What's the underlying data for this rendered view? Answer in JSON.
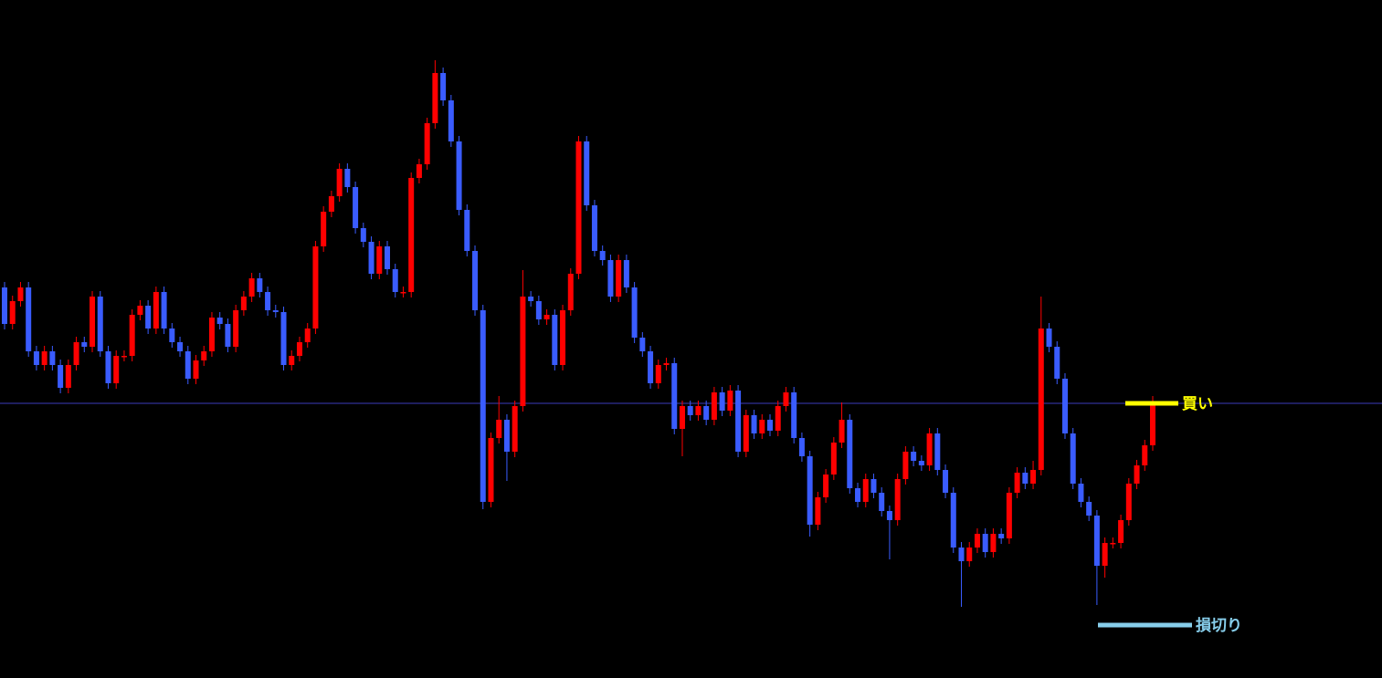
{
  "chart_data": {
    "type": "candlestick",
    "ylim": [
      0,
      743
    ],
    "up_color": "#ff0000",
    "down_color": "#3a5cff",
    "open": [
      428,
      388,
      413,
      428,
      358,
      343,
      358,
      343,
      318,
      343,
      368,
      363,
      418,
      358,
      323,
      353,
      353,
      398,
      408,
      383,
      423,
      383,
      368,
      358,
      328,
      348,
      358,
      395,
      388,
      363,
      403,
      418,
      438,
      423,
      403,
      401,
      343,
      353,
      368,
      383,
      473,
      511,
      528,
      558,
      538,
      493,
      478,
      443,
      473,
      448,
      423,
      423,
      548,
      563,
      608,
      663,
      633,
      588,
      513,
      468,
      403,
      193,
      263,
      283,
      248,
      298,
      418,
      413,
      393,
      398,
      343,
      403,
      443,
      588,
      518,
      468,
      458,
      418,
      458,
      428,
      373,
      358,
      323,
      343,
      345,
      273,
      298,
      288,
      298,
      283,
      313,
      293,
      315,
      248,
      288,
      268,
      283,
      271,
      298,
      313,
      263,
      243,
      168,
      198,
      223,
      258,
      283,
      208,
      193,
      218,
      203,
      183,
      173,
      218,
      248,
      238,
      233,
      268,
      228,
      203,
      143,
      128,
      143,
      158,
      138,
      158,
      153,
      203,
      225,
      213,
      228,
      383,
      363,
      328,
      268,
      213,
      193,
      178,
      123,
      148,
      148,
      173,
      213,
      233,
      255
    ],
    "high": [
      434,
      419,
      434,
      434,
      364,
      364,
      364,
      349,
      349,
      374,
      374,
      424,
      424,
      364,
      359,
      359,
      404,
      414,
      414,
      429,
      429,
      389,
      374,
      364,
      354,
      364,
      401,
      401,
      394,
      409,
      424,
      444,
      444,
      429,
      409,
      407,
      359,
      374,
      389,
      479,
      517,
      534,
      564,
      564,
      544,
      499,
      484,
      479,
      479,
      454,
      429,
      554,
      569,
      614,
      677,
      669,
      639,
      594,
      519,
      474,
      409,
      269,
      309,
      289,
      304,
      447,
      424,
      419,
      404,
      404,
      409,
      449,
      594,
      594,
      524,
      474,
      464,
      464,
      464,
      434,
      379,
      364,
      349,
      351,
      351,
      304,
      304,
      304,
      304,
      319,
      319,
      321,
      321,
      294,
      294,
      289,
      289,
      304,
      319,
      319,
      269,
      249,
      204,
      229,
      264,
      302,
      289,
      214,
      224,
      224,
      209,
      189,
      224,
      254,
      254,
      244,
      274,
      274,
      234,
      209,
      149,
      149,
      164,
      164,
      164,
      164,
      209,
      231,
      231,
      238,
      418,
      389,
      369,
      334,
      274,
      219,
      199,
      184,
      154,
      154,
      179,
      219,
      239,
      261,
      309
    ],
    "low": [
      382,
      382,
      407,
      352,
      337,
      337,
      337,
      312,
      312,
      337,
      357,
      357,
      352,
      317,
      317,
      347,
      347,
      392,
      377,
      377,
      377,
      362,
      352,
      322,
      322,
      342,
      352,
      382,
      357,
      357,
      397,
      412,
      417,
      397,
      395,
      337,
      337,
      347,
      362,
      377,
      467,
      505,
      522,
      532,
      487,
      472,
      437,
      437,
      442,
      417,
      417,
      417,
      542,
      557,
      602,
      627,
      582,
      507,
      462,
      397,
      185,
      187,
      257,
      216,
      242,
      292,
      407,
      387,
      387,
      337,
      337,
      397,
      437,
      512,
      462,
      452,
      412,
      412,
      422,
      367,
      352,
      317,
      317,
      337,
      267,
      243,
      282,
      282,
      277,
      277,
      287,
      287,
      242,
      242,
      262,
      262,
      265,
      265,
      292,
      257,
      237,
      155,
      162,
      192,
      217,
      252,
      202,
      187,
      187,
      197,
      177,
      130,
      167,
      212,
      232,
      227,
      227,
      222,
      197,
      137,
      78,
      122,
      137,
      132,
      132,
      147,
      147,
      197,
      207,
      207,
      222,
      357,
      322,
      262,
      207,
      187,
      172,
      80,
      110,
      142,
      142,
      167,
      207,
      227,
      249
    ],
    "close": [
      388,
      413,
      428,
      358,
      343,
      358,
      343,
      318,
      343,
      368,
      363,
      418,
      358,
      323,
      353,
      353,
      398,
      408,
      383,
      423,
      383,
      368,
      358,
      328,
      348,
      358,
      395,
      388,
      363,
      403,
      418,
      438,
      423,
      403,
      401,
      343,
      353,
      368,
      383,
      473,
      511,
      528,
      558,
      538,
      493,
      478,
      443,
      473,
      448,
      423,
      423,
      548,
      563,
      608,
      663,
      633,
      588,
      513,
      468,
      403,
      193,
      263,
      283,
      248,
      298,
      418,
      413,
      393,
      398,
      343,
      403,
      443,
      588,
      518,
      468,
      458,
      418,
      458,
      428,
      373,
      358,
      323,
      343,
      345,
      273,
      298,
      288,
      298,
      283,
      313,
      293,
      315,
      248,
      288,
      268,
      283,
      271,
      298,
      313,
      263,
      243,
      168,
      198,
      223,
      258,
      283,
      208,
      193,
      218,
      203,
      183,
      173,
      218,
      248,
      238,
      233,
      268,
      228,
      203,
      143,
      128,
      143,
      158,
      138,
      158,
      153,
      203,
      225,
      213,
      228,
      383,
      363,
      328,
      268,
      213,
      193,
      178,
      123,
      148,
      148,
      173,
      213,
      233,
      255,
      303
    ],
    "annotations": [
      {
        "text": "買い",
        "value": 301,
        "color": "#ffff00",
        "guide_color": "#3b3bbd"
      },
      {
        "text": "損切り",
        "value": 58,
        "color": "#87ceeb"
      }
    ]
  }
}
